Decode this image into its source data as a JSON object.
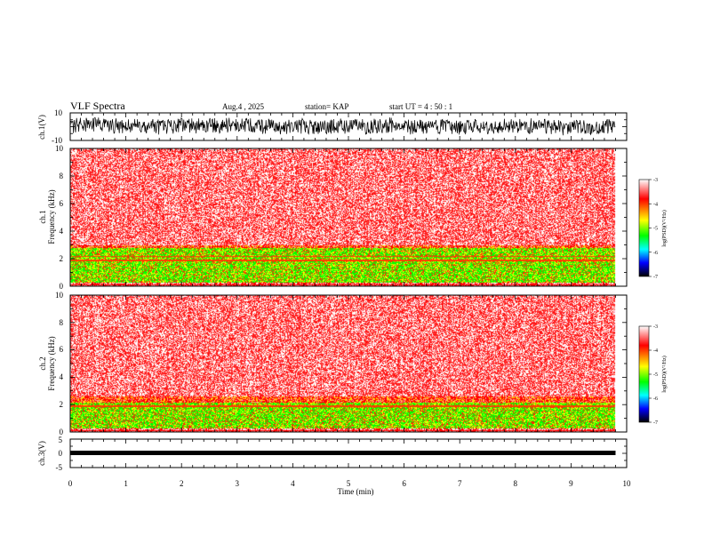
{
  "header": {
    "title": "VLF Spectra",
    "date": "Aug.4  , 2025",
    "station": "station= KAP",
    "start": "start  UT  =   4 : 50 : 1"
  },
  "colorbar": {
    "ticks": [
      "-3",
      "-4",
      "-5",
      "-6",
      "-7"
    ],
    "label": "log(PSD)(V²/Hz)",
    "colors": [
      "#ffffff",
      "#ff0000",
      "#ffff00",
      "#00ff00",
      "#00ffff",
      "#0000ff",
      "#000000"
    ]
  },
  "chart_data": [
    {
      "type": "line",
      "name": "ch1-waveform",
      "ylabel": "ch.1(V)",
      "ylim": [
        -10,
        10
      ],
      "yticks": [
        "10",
        "-10"
      ],
      "xlim": [
        0,
        10
      ],
      "description_values": "noisy waveform, roughly +/-5 V, recorded 0 to 9.8 min"
    },
    {
      "type": "heatmap",
      "name": "ch1-spectrogram",
      "ylabel": "ch.1\nFrequency  (kHz)",
      "ylim": [
        0,
        10
      ],
      "yticks": [
        "0",
        "2",
        "4",
        "6",
        "8",
        "10"
      ],
      "xlim": [
        0,
        10
      ],
      "data_end_min": 9.8,
      "bands_kHz": {
        "low_intensity_top": 3.0,
        "strong_band": [
          0.3,
          2.8
        ]
      },
      "log_psd_range": [
        -7,
        -3
      ]
    },
    {
      "type": "heatmap",
      "name": "ch2-spectrogram",
      "ylabel": "ch.2\nFrequency  (kHz)",
      "ylim": [
        0,
        10
      ],
      "yticks": [
        "0",
        "2",
        "4",
        "6",
        "8",
        "10"
      ],
      "xlim": [
        0,
        10
      ],
      "data_end_min": 9.8,
      "bands_kHz": {
        "low_intensity_top": 2.6,
        "strong_band": [
          0.3,
          2.2
        ]
      },
      "log_psd_range": [
        -7,
        -3
      ]
    },
    {
      "type": "line",
      "name": "ch3-waveform",
      "ylabel": "ch.3(V)",
      "ylim": [
        -5,
        5
      ],
      "yticks": [
        "5",
        "0",
        "-5"
      ],
      "xlim": [
        0,
        10
      ],
      "level_V": 0,
      "description_values": "thin constant trace near 0 V"
    }
  ],
  "xaxis": {
    "label": "Time  (min)",
    "ticks": [
      "0",
      "1",
      "2",
      "3",
      "4",
      "5",
      "6",
      "7",
      "8",
      "9",
      "10"
    ]
  }
}
